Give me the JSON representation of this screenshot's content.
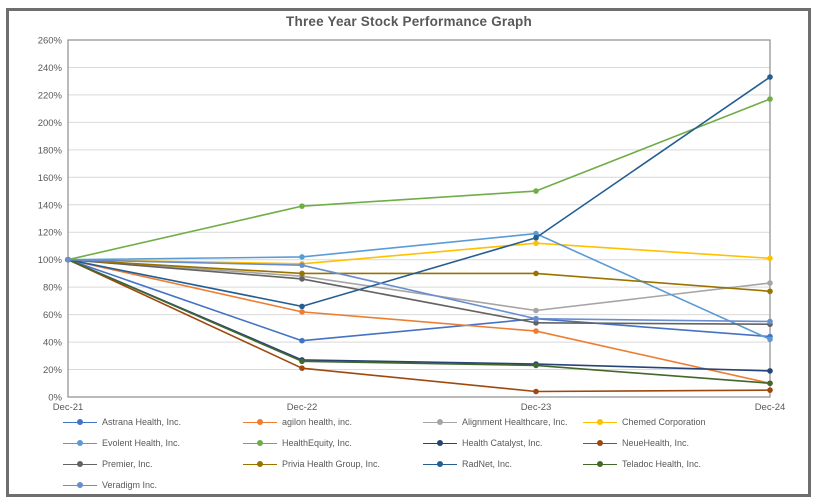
{
  "title": "Three Year Stock Performance Graph",
  "chart_data": {
    "type": "line",
    "title": "Three Year Stock Performance Graph",
    "xlabel": "",
    "ylabel": "",
    "x_categories": [
      "Dec-21",
      "Dec-22",
      "Dec-23",
      "Dec-24"
    ],
    "y_axis": {
      "min": 0,
      "max": 260,
      "step": 20,
      "format": "percent"
    },
    "y_tick_labels": [
      "0%",
      "20%",
      "40%",
      "60%",
      "80%",
      "100%",
      "120%",
      "140%",
      "160%",
      "180%",
      "200%",
      "220%",
      "240%",
      "260%"
    ],
    "grid": true,
    "legend_position": "bottom",
    "marker": "circle",
    "colors": {
      "text": "#595959",
      "gridline": "#D9D9D9",
      "plot_border": "#8C8C8C",
      "outer_border": "#6e6e6e"
    },
    "series": [
      {
        "name": "Astrana Health, Inc.",
        "color": "#4472C4",
        "values": [
          100,
          41,
          57,
          44
        ]
      },
      {
        "name": "agilon health, inc.",
        "color": "#ED7D31",
        "values": [
          100,
          62,
          48,
          10
        ]
      },
      {
        "name": "Alignment Healthcare, Inc.",
        "color": "#A5A5A5",
        "values": [
          100,
          88,
          63,
          83
        ]
      },
      {
        "name": "Chemed Corporation",
        "color": "#FFC000",
        "values": [
          100,
          97,
          112,
          101
        ]
      },
      {
        "name": "Evolent Health, Inc.",
        "color": "#5B9BD5",
        "values": [
          100,
          102,
          119,
          42
        ]
      },
      {
        "name": "HealthEquity, Inc.",
        "color": "#70AD47",
        "values": [
          100,
          139,
          150,
          217
        ]
      },
      {
        "name": "Health Catalyst, Inc.",
        "color": "#264478",
        "values": [
          100,
          27,
          24,
          19
        ]
      },
      {
        "name": "NeueHealth, Inc.",
        "color": "#9E480E",
        "values": [
          100,
          21,
          4,
          5
        ]
      },
      {
        "name": "Premier, Inc.",
        "color": "#636363",
        "values": [
          100,
          86,
          54,
          53
        ]
      },
      {
        "name": "Privia Health Group, Inc.",
        "color": "#997300",
        "values": [
          100,
          90,
          90,
          77
        ]
      },
      {
        "name": "RadNet, Inc.",
        "color": "#255E91",
        "values": [
          100,
          66,
          116,
          233
        ]
      },
      {
        "name": "Teladoc Health, Inc.",
        "color": "#43682B",
        "values": [
          100,
          26,
          23,
          10
        ]
      },
      {
        "name": "Veradigm Inc.",
        "color": "#698ED0",
        "values": [
          100,
          96,
          57,
          55
        ]
      }
    ]
  }
}
